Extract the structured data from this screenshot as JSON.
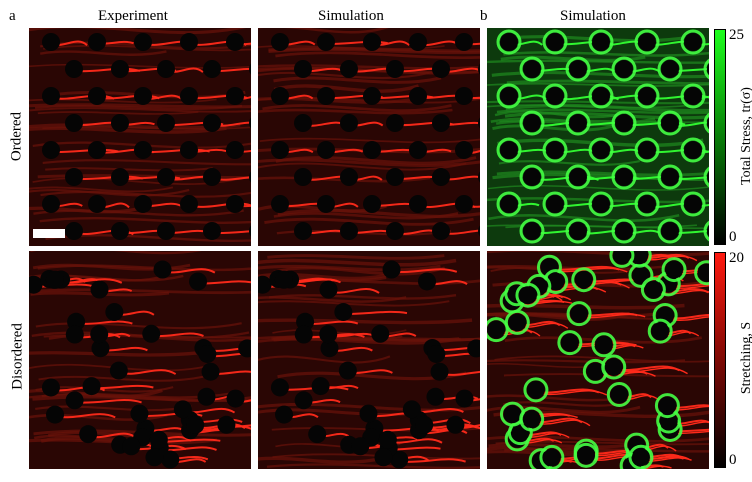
{
  "panel_a_letter": "a",
  "panel_b_letter": "b",
  "col_experiment": "Experiment",
  "col_simulation": "Simulation",
  "col_simulation_b": "Simulation",
  "row_ordered": "Ordered",
  "row_disordered": "Disordered",
  "colorbar_stress": {
    "label": "Total Stress, tr(σ)",
    "max": "25",
    "min": "0",
    "color": "#00e000"
  },
  "colorbar_stretch": {
    "label": "Stretching, S",
    "max": "20",
    "min": "0",
    "color": "#ff0000"
  },
  "colors": {
    "red_field": "#ff2a1a",
    "green_field": "#1eff1e",
    "background": "#000000"
  }
}
